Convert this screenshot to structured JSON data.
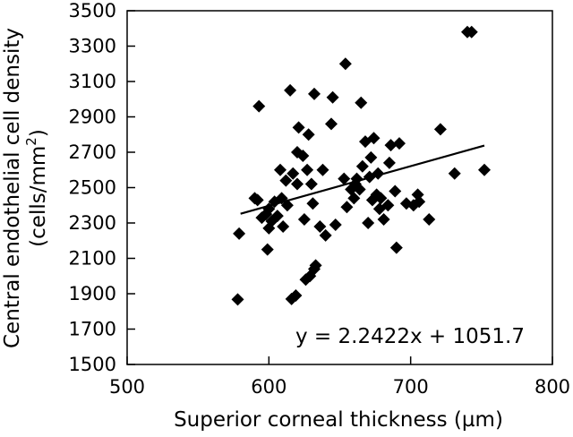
{
  "chart_data": {
    "type": "scatter",
    "title": "",
    "xlabel": "Superior corneal thickness (µm)",
    "ylabel_line1": "Central endothelial cell density",
    "ylabel_line2_prefix": "(cells/mm",
    "ylabel_line2_sup": "2",
    "ylabel_line2_suffix": ")",
    "xlim": [
      500,
      800
    ],
    "ylim": [
      1500,
      3500
    ],
    "x_ticks": [
      500,
      600,
      700,
      800
    ],
    "y_ticks": [
      1500,
      1700,
      1900,
      2100,
      2300,
      2500,
      2700,
      2900,
      3100,
      3300,
      3500
    ],
    "grid": false,
    "marker": "diamond",
    "marker_color": "#000000",
    "annotation": "y = 2.2422x + 1051.7",
    "regression": {
      "slope": 2.2422,
      "intercept": 1051.7,
      "x_start": 580,
      "x_end": 752
    },
    "points": [
      {
        "x": 578,
        "y": 1868
      },
      {
        "x": 579,
        "y": 2240
      },
      {
        "x": 590,
        "y": 2440
      },
      {
        "x": 592,
        "y": 2430
      },
      {
        "x": 593,
        "y": 2960
      },
      {
        "x": 595,
        "y": 2330
      },
      {
        "x": 598,
        "y": 2350
      },
      {
        "x": 599,
        "y": 2150
      },
      {
        "x": 600,
        "y": 2380
      },
      {
        "x": 600,
        "y": 2270
      },
      {
        "x": 602,
        "y": 2310
      },
      {
        "x": 604,
        "y": 2420
      },
      {
        "x": 606,
        "y": 2340
      },
      {
        "x": 608,
        "y": 2600
      },
      {
        "x": 609,
        "y": 2440
      },
      {
        "x": 610,
        "y": 2280
      },
      {
        "x": 612,
        "y": 2540
      },
      {
        "x": 613,
        "y": 2400
      },
      {
        "x": 615,
        "y": 3050
      },
      {
        "x": 616,
        "y": 1870
      },
      {
        "x": 617,
        "y": 2580
      },
      {
        "x": 619,
        "y": 1890
      },
      {
        "x": 620,
        "y": 2700
      },
      {
        "x": 620,
        "y": 2520
      },
      {
        "x": 621,
        "y": 2840
      },
      {
        "x": 624,
        "y": 2680
      },
      {
        "x": 625,
        "y": 2320
      },
      {
        "x": 626,
        "y": 1980
      },
      {
        "x": 627,
        "y": 2600
      },
      {
        "x": 628,
        "y": 2800
      },
      {
        "x": 629,
        "y": 2000
      },
      {
        "x": 630,
        "y": 2520
      },
      {
        "x": 631,
        "y": 2410
      },
      {
        "x": 632,
        "y": 2040
      },
      {
        "x": 632,
        "y": 3030
      },
      {
        "x": 633,
        "y": 2060
      },
      {
        "x": 636,
        "y": 2280
      },
      {
        "x": 638,
        "y": 2600
      },
      {
        "x": 640,
        "y": 2230
      },
      {
        "x": 644,
        "y": 2860
      },
      {
        "x": 645,
        "y": 3010
      },
      {
        "x": 647,
        "y": 2290
      },
      {
        "x": 653,
        "y": 2550
      },
      {
        "x": 654,
        "y": 3200
      },
      {
        "x": 655,
        "y": 2390
      },
      {
        "x": 658,
        "y": 2490
      },
      {
        "x": 660,
        "y": 2440
      },
      {
        "x": 661,
        "y": 2520
      },
      {
        "x": 662,
        "y": 2550
      },
      {
        "x": 664,
        "y": 2490
      },
      {
        "x": 665,
        "y": 2980
      },
      {
        "x": 666,
        "y": 2620
      },
      {
        "x": 668,
        "y": 2760
      },
      {
        "x": 670,
        "y": 2300
      },
      {
        "x": 671,
        "y": 2560
      },
      {
        "x": 672,
        "y": 2670
      },
      {
        "x": 673,
        "y": 2430
      },
      {
        "x": 674,
        "y": 2780
      },
      {
        "x": 676,
        "y": 2460
      },
      {
        "x": 677,
        "y": 2580
      },
      {
        "x": 678,
        "y": 2380
      },
      {
        "x": 679,
        "y": 2440
      },
      {
        "x": 681,
        "y": 2320
      },
      {
        "x": 684,
        "y": 2400
      },
      {
        "x": 685,
        "y": 2640
      },
      {
        "x": 686,
        "y": 2740
      },
      {
        "x": 689,
        "y": 2480
      },
      {
        "x": 690,
        "y": 2160
      },
      {
        "x": 692,
        "y": 2750
      },
      {
        "x": 697,
        "y": 2410
      },
      {
        "x": 702,
        "y": 2400
      },
      {
        "x": 705,
        "y": 2460
      },
      {
        "x": 706,
        "y": 2420
      },
      {
        "x": 713,
        "y": 2320
      },
      {
        "x": 721,
        "y": 2830
      },
      {
        "x": 731,
        "y": 2580
      },
      {
        "x": 740,
        "y": 3380
      },
      {
        "x": 743,
        "y": 3380
      },
      {
        "x": 752,
        "y": 2600
      }
    ]
  }
}
